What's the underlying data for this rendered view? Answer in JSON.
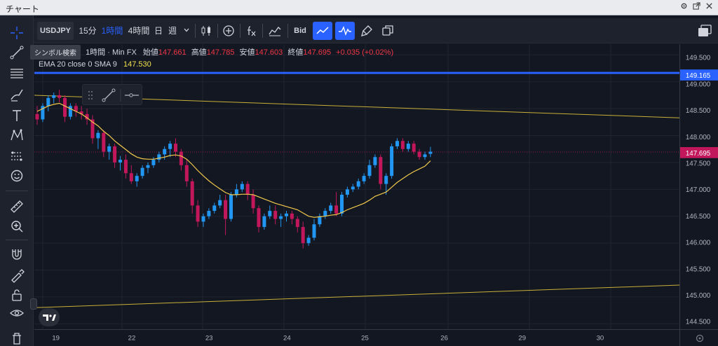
{
  "window": {
    "title": "チャート",
    "controls": [
      "gear-icon",
      "popout-icon",
      "close-icon"
    ]
  },
  "toolbar": {
    "symbol": "USDJPY",
    "timeframes": [
      "15分",
      "1時間",
      "4時間",
      "日",
      "週"
    ],
    "active_timeframe": "1時間",
    "price_source": "Bid",
    "icons": [
      "chevron-down-icon",
      "candles-icon",
      "add-circle-icon",
      "fx-icon",
      "indicators-icon",
      "line-chart-icon",
      "pulse-icon",
      "brush-icon",
      "copy-icon",
      "layout-icon"
    ]
  },
  "tooltip": {
    "text": "シンボル検索"
  },
  "legend": {
    "title": "1時間 · Min FX",
    "open_label": "始値",
    "open": "147.661",
    "high_label": "高値",
    "high": "147.785",
    "low_label": "安値",
    "low": "147.603",
    "close_label": "終値",
    "close": "147.695",
    "change": "+0.035 (+0.02%)",
    "ema_label": "EMA 20 close 0 SMA 9",
    "ema_value": "147.530"
  },
  "price_scale": {
    "ticks": [
      "149.500",
      "149.000",
      "148.500",
      "148.000",
      "147.500",
      "147.000",
      "146.500",
      "146.000",
      "145.500",
      "145.000",
      "144.500"
    ],
    "hline_label": "149.165",
    "last_label": "147.695"
  },
  "time_scale": {
    "ticks": [
      "19",
      "22",
      "23",
      "24",
      "25",
      "26",
      "29",
      "30"
    ]
  },
  "colors": {
    "bg": "#131722",
    "up": "#2196f3",
    "down": "#c2185b",
    "ema": "#f2c94c",
    "hline": "#2962ff",
    "trendline": "#c9b03a",
    "last_price_bg": "#c2185b"
  },
  "chart_data": {
    "type": "candlestick",
    "symbol": "USDJPY",
    "ylim": [
      144.4,
      149.7
    ],
    "hline": 149.165,
    "last_price": 147.695,
    "candles": [
      [
        148.4,
        148.55,
        148.2,
        148.3
      ],
      [
        148.3,
        148.6,
        148.25,
        148.55
      ],
      [
        148.55,
        148.75,
        148.45,
        148.7
      ],
      [
        148.7,
        148.8,
        148.6,
        148.75
      ],
      [
        148.75,
        148.85,
        148.62,
        148.7
      ],
      [
        148.7,
        148.75,
        148.25,
        148.35
      ],
      [
        148.35,
        148.6,
        148.3,
        148.55
      ],
      [
        148.55,
        148.6,
        148.35,
        148.45
      ],
      [
        148.45,
        148.55,
        148.3,
        148.4
      ],
      [
        148.4,
        148.5,
        148.2,
        148.3
      ],
      [
        148.3,
        148.38,
        147.85,
        147.95
      ],
      [
        147.95,
        148.1,
        147.75,
        148.05
      ],
      [
        148.05,
        148.1,
        147.6,
        147.7
      ],
      [
        147.7,
        147.85,
        147.55,
        147.8
      ],
      [
        147.8,
        147.85,
        147.4,
        147.5
      ],
      [
        147.5,
        147.62,
        147.35,
        147.55
      ],
      [
        147.55,
        147.65,
        147.2,
        147.3
      ],
      [
        147.3,
        147.45,
        147.1,
        147.15
      ],
      [
        147.15,
        147.3,
        147.05,
        147.25
      ],
      [
        147.25,
        147.45,
        147.2,
        147.4
      ],
      [
        147.4,
        147.5,
        147.3,
        147.45
      ],
      [
        147.45,
        147.6,
        147.4,
        147.55
      ],
      [
        147.55,
        147.7,
        147.5,
        147.65
      ],
      [
        147.65,
        147.8,
        147.55,
        147.75
      ],
      [
        147.75,
        147.9,
        147.6,
        147.85
      ],
      [
        147.85,
        147.95,
        147.6,
        147.7
      ],
      [
        147.7,
        147.75,
        147.35,
        147.45
      ],
      [
        147.45,
        147.55,
        147.05,
        147.15
      ],
      [
        147.15,
        147.2,
        146.55,
        146.7
      ],
      [
        146.7,
        146.8,
        146.3,
        146.4
      ],
      [
        146.4,
        146.55,
        146.3,
        146.5
      ],
      [
        146.5,
        146.65,
        146.45,
        146.6
      ],
      [
        146.6,
        146.75,
        146.55,
        146.7
      ],
      [
        146.7,
        146.9,
        146.65,
        146.8
      ],
      [
        146.8,
        146.9,
        146.15,
        146.45
      ],
      [
        146.45,
        146.95,
        146.4,
        146.9
      ],
      [
        146.9,
        147.1,
        146.85,
        147.0
      ],
      [
        147.0,
        147.15,
        146.95,
        147.1
      ],
      [
        147.1,
        147.15,
        146.8,
        146.9
      ],
      [
        146.9,
        147.0,
        146.55,
        146.65
      ],
      [
        146.65,
        146.7,
        146.2,
        146.3
      ],
      [
        146.3,
        146.55,
        146.25,
        146.5
      ],
      [
        146.5,
        146.7,
        146.45,
        146.6
      ],
      [
        146.6,
        146.7,
        146.35,
        146.45
      ],
      [
        146.45,
        146.55,
        146.3,
        146.5
      ],
      [
        146.5,
        146.6,
        146.4,
        146.55
      ],
      [
        146.55,
        146.6,
        146.35,
        146.45
      ],
      [
        146.45,
        146.5,
        146.2,
        146.3
      ],
      [
        146.3,
        146.4,
        145.9,
        146.0
      ],
      [
        146.0,
        146.15,
        145.95,
        146.1
      ],
      [
        146.1,
        146.45,
        146.05,
        146.35
      ],
      [
        146.35,
        146.55,
        146.3,
        146.5
      ],
      [
        146.5,
        146.65,
        146.45,
        146.6
      ],
      [
        146.6,
        146.75,
        146.55,
        146.7
      ],
      [
        146.7,
        146.95,
        146.5,
        146.55
      ],
      [
        146.55,
        146.95,
        146.5,
        146.9
      ],
      [
        146.9,
        147.05,
        146.85,
        147.0
      ],
      [
        147.0,
        147.1,
        146.95,
        147.05
      ],
      [
        147.05,
        147.2,
        147.0,
        147.15
      ],
      [
        147.15,
        147.3,
        147.1,
        147.25
      ],
      [
        147.25,
        147.55,
        147.2,
        147.45
      ],
      [
        147.45,
        147.65,
        147.4,
        147.6
      ],
      [
        147.6,
        147.65,
        147.0,
        147.1
      ],
      [
        147.1,
        147.3,
        146.9,
        147.25
      ],
      [
        147.25,
        147.85,
        147.2,
        147.8
      ],
      [
        147.8,
        147.95,
        147.75,
        147.9
      ],
      [
        147.9,
        147.95,
        147.7,
        147.75
      ],
      [
        147.75,
        147.9,
        147.7,
        147.85
      ],
      [
        147.85,
        147.9,
        147.65,
        147.7
      ],
      [
        147.7,
        147.75,
        147.55,
        147.6
      ],
      [
        147.6,
        147.7,
        147.55,
        147.65
      ],
      [
        147.66,
        147.79,
        147.6,
        147.7
      ]
    ],
    "ema": [
      148.45,
      148.5,
      148.55,
      148.58,
      148.6,
      148.55,
      148.5,
      148.45,
      148.4,
      148.33,
      148.25,
      148.18,
      148.08,
      148.0,
      147.9,
      147.82,
      147.74,
      147.66,
      147.6,
      147.57,
      147.56,
      147.56,
      147.58,
      147.6,
      147.63,
      147.64,
      147.62,
      147.56,
      147.46,
      147.35,
      147.25,
      147.16,
      147.08,
      147.01,
      146.94,
      146.9,
      146.9,
      146.91,
      146.91,
      146.9,
      146.86,
      146.82,
      146.78,
      146.74,
      146.71,
      146.68,
      146.65,
      146.62,
      146.56,
      146.5,
      146.48,
      146.49,
      146.5,
      146.52,
      146.53,
      146.57,
      146.62,
      146.66,
      146.7,
      146.74,
      146.8,
      146.87,
      146.91,
      146.95,
      147.04,
      147.13,
      147.2,
      147.27,
      147.33,
      147.38,
      147.43,
      147.53
    ],
    "trendlines": [
      {
        "from": [
          0,
          148.75
        ],
        "to": [
          1.0,
          148.33
        ]
      },
      {
        "from": [
          0,
          144.8
        ],
        "to": [
          1.0,
          145.22
        ]
      }
    ]
  }
}
